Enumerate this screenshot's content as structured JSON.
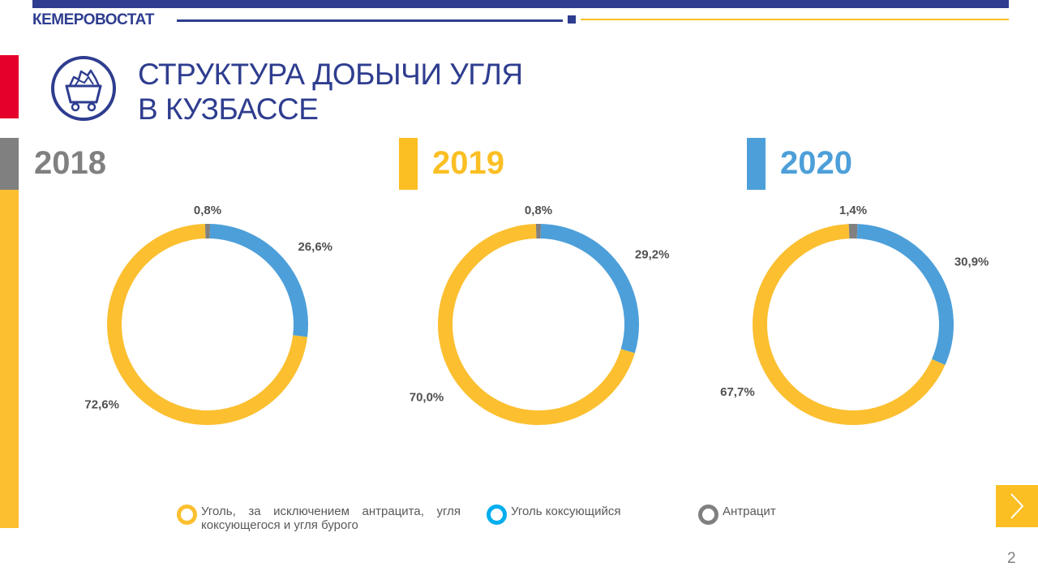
{
  "header": {
    "brand": "КЕМЕРОВОСТАТ",
    "title_line1": "СТРУКТУРА ДОБЫЧИ УГЛЯ",
    "title_line2": "В КУЗБАССЕ"
  },
  "page_number": "2",
  "legend": {
    "items": [
      {
        "line1": "Уголь, за исключением антрацита, угля",
        "line2": "коксующегося и угля бурого"
      },
      {
        "line1": "Уголь коксующийся"
      },
      {
        "line1": "Антрацит"
      }
    ]
  },
  "colors": {
    "navy": "#2e3d8f",
    "yellow": "#fbbf30",
    "blue": "#4d9fd9",
    "gray": "#808080",
    "red": "#e4002b",
    "year_2018": "#808080",
    "year_2019": "#fbbf24",
    "year_2020": "#4d9fd9"
  },
  "chart_data": [
    {
      "type": "pie",
      "variant": "donut",
      "title": "2018",
      "categories": [
        "Уголь, за исключением антрацита, угля коксующегося и угля бурого",
        "Уголь коксующийся",
        "Антрацит"
      ],
      "values": [
        72.6,
        26.6,
        0.8
      ],
      "labels": [
        "72,6%",
        "26,6%",
        "0,8%"
      ]
    },
    {
      "type": "pie",
      "variant": "donut",
      "title": "2019",
      "categories": [
        "Уголь, за исключением антрацита, угля коксующегося и угля бурого",
        "Уголь коксующийся",
        "Антрацит"
      ],
      "values": [
        70.0,
        29.2,
        0.8
      ],
      "labels": [
        "70,0%",
        "29,2%",
        "0,8%"
      ]
    },
    {
      "type": "pie",
      "variant": "donut",
      "title": "2020",
      "categories": [
        "Уголь, за исключением антрацита, угля коксующегося и угля бурого",
        "Уголь коксующийся",
        "Антрацит"
      ],
      "values": [
        67.7,
        30.9,
        1.4
      ],
      "labels": [
        "67,7%",
        "30,9%",
        "1,4%"
      ]
    }
  ]
}
